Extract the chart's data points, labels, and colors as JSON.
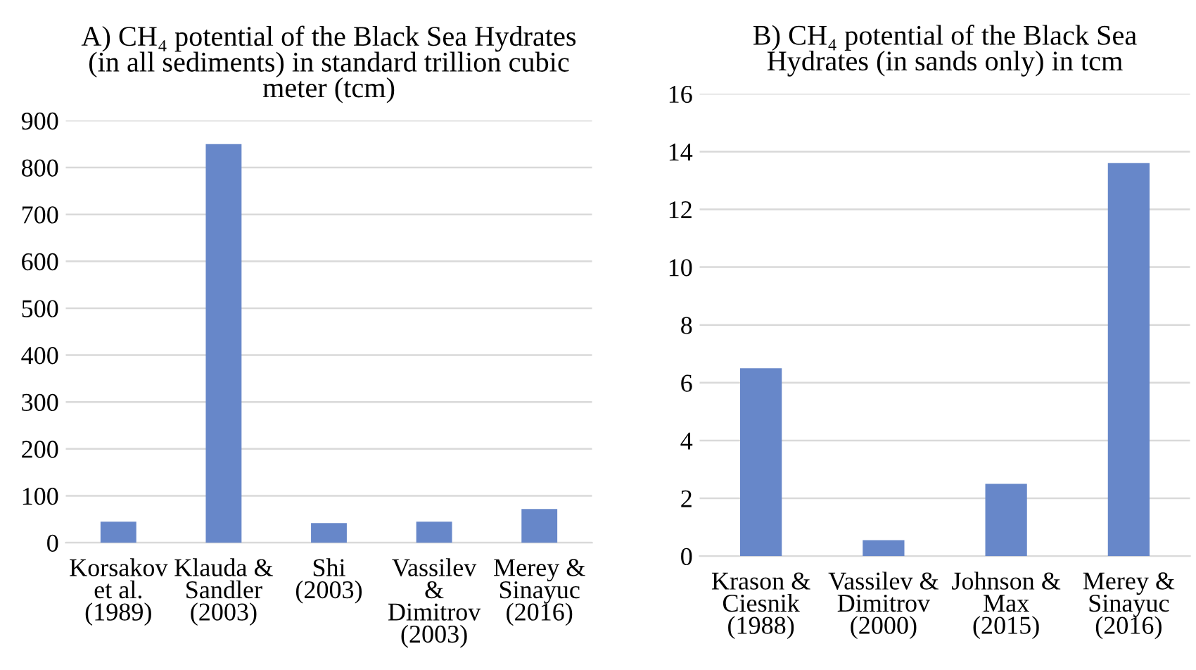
{
  "chart_data": [
    {
      "type": "bar",
      "title": "A) CH₄ potential of the Black Sea Hydrates\n(in all sediments) in standard trillion cubic\nmeter (tcm)",
      "categories": [
        "Korsakov\net al.\n(1989)",
        "Klauda &\nSandler\n(2003)",
        "Shi\n(2003)",
        "Vassilev\n&\nDimitrov\n(2003)",
        "Merey &\nSinayuc\n(2016)"
      ],
      "values": [
        45,
        850,
        42,
        45,
        72
      ],
      "color": "#6787c9",
      "ylim": [
        0,
        900
      ],
      "yticks": [
        0,
        100,
        200,
        300,
        400,
        500,
        600,
        700,
        800,
        900
      ],
      "grid": "y"
    },
    {
      "type": "bar",
      "title": "B) CH₄ potential of the Black Sea\nHydrates (in sands only) in tcm",
      "categories": [
        "Krason &\nCiesnik\n(1988)",
        "Vassilev &\nDimitrov\n(2000)",
        "Johnson &\nMax\n(2015)",
        "Merey &\nSinayuc\n(2016)"
      ],
      "values": [
        6.5,
        0.55,
        2.5,
        13.6
      ],
      "color": "#6787c9",
      "ylim": [
        0,
        16
      ],
      "yticks": [
        0,
        2,
        4,
        6,
        8,
        10,
        12,
        14,
        16
      ],
      "grid": "y"
    }
  ]
}
